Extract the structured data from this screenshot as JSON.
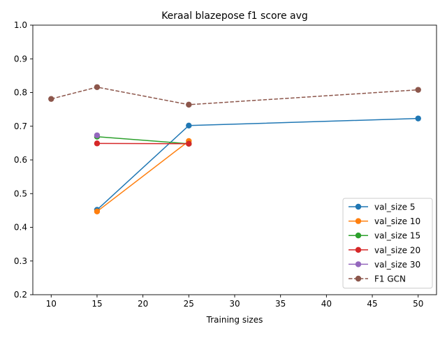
{
  "chart_data": {
    "type": "line",
    "title": "Keraal blazepose f1 score avg",
    "xlabel": "Training sizes",
    "ylabel": "",
    "xlim": [
      8.0,
      52.0
    ],
    "ylim": [
      0.2,
      1.0
    ],
    "xticks": [
      10,
      15,
      20,
      25,
      30,
      35,
      40,
      45,
      50
    ],
    "yticks": [
      0.2,
      0.3,
      0.4,
      0.5,
      0.6,
      0.7,
      0.8,
      0.9,
      1.0
    ],
    "xtick_labels": [
      "10",
      "15",
      "20",
      "25",
      "30",
      "35",
      "40",
      "45",
      "50"
    ],
    "ytick_labels": [
      "0.2",
      "0.3",
      "0.4",
      "0.5",
      "0.6",
      "0.7",
      "0.8",
      "0.9",
      "1.0"
    ],
    "grid": false,
    "legend_position": "lower-right",
    "series": [
      {
        "name": "val_size 5",
        "color": "#1f77b4",
        "dashed": false,
        "x": [
          15,
          25,
          50
        ],
        "y": [
          0.452,
          0.702,
          0.723
        ]
      },
      {
        "name": "val_size 10",
        "color": "#ff7f0e",
        "dashed": false,
        "x": [
          15,
          25
        ],
        "y": [
          0.447,
          0.656
        ]
      },
      {
        "name": "val_size 15",
        "color": "#2ca02c",
        "dashed": false,
        "x": [
          15,
          25
        ],
        "y": [
          0.669,
          0.648
        ]
      },
      {
        "name": "val_size 20",
        "color": "#d62728",
        "dashed": false,
        "x": [
          15,
          25
        ],
        "y": [
          0.649,
          0.648
        ]
      },
      {
        "name": "val_size 30",
        "color": "#9467bd",
        "dashed": false,
        "x": [
          15
        ],
        "y": [
          0.673
        ]
      },
      {
        "name": "F1 GCN",
        "color": "#8c564b",
        "dashed": true,
        "x": [
          10,
          15,
          25,
          50
        ],
        "y": [
          0.781,
          0.816,
          0.764,
          0.808
        ]
      }
    ]
  }
}
